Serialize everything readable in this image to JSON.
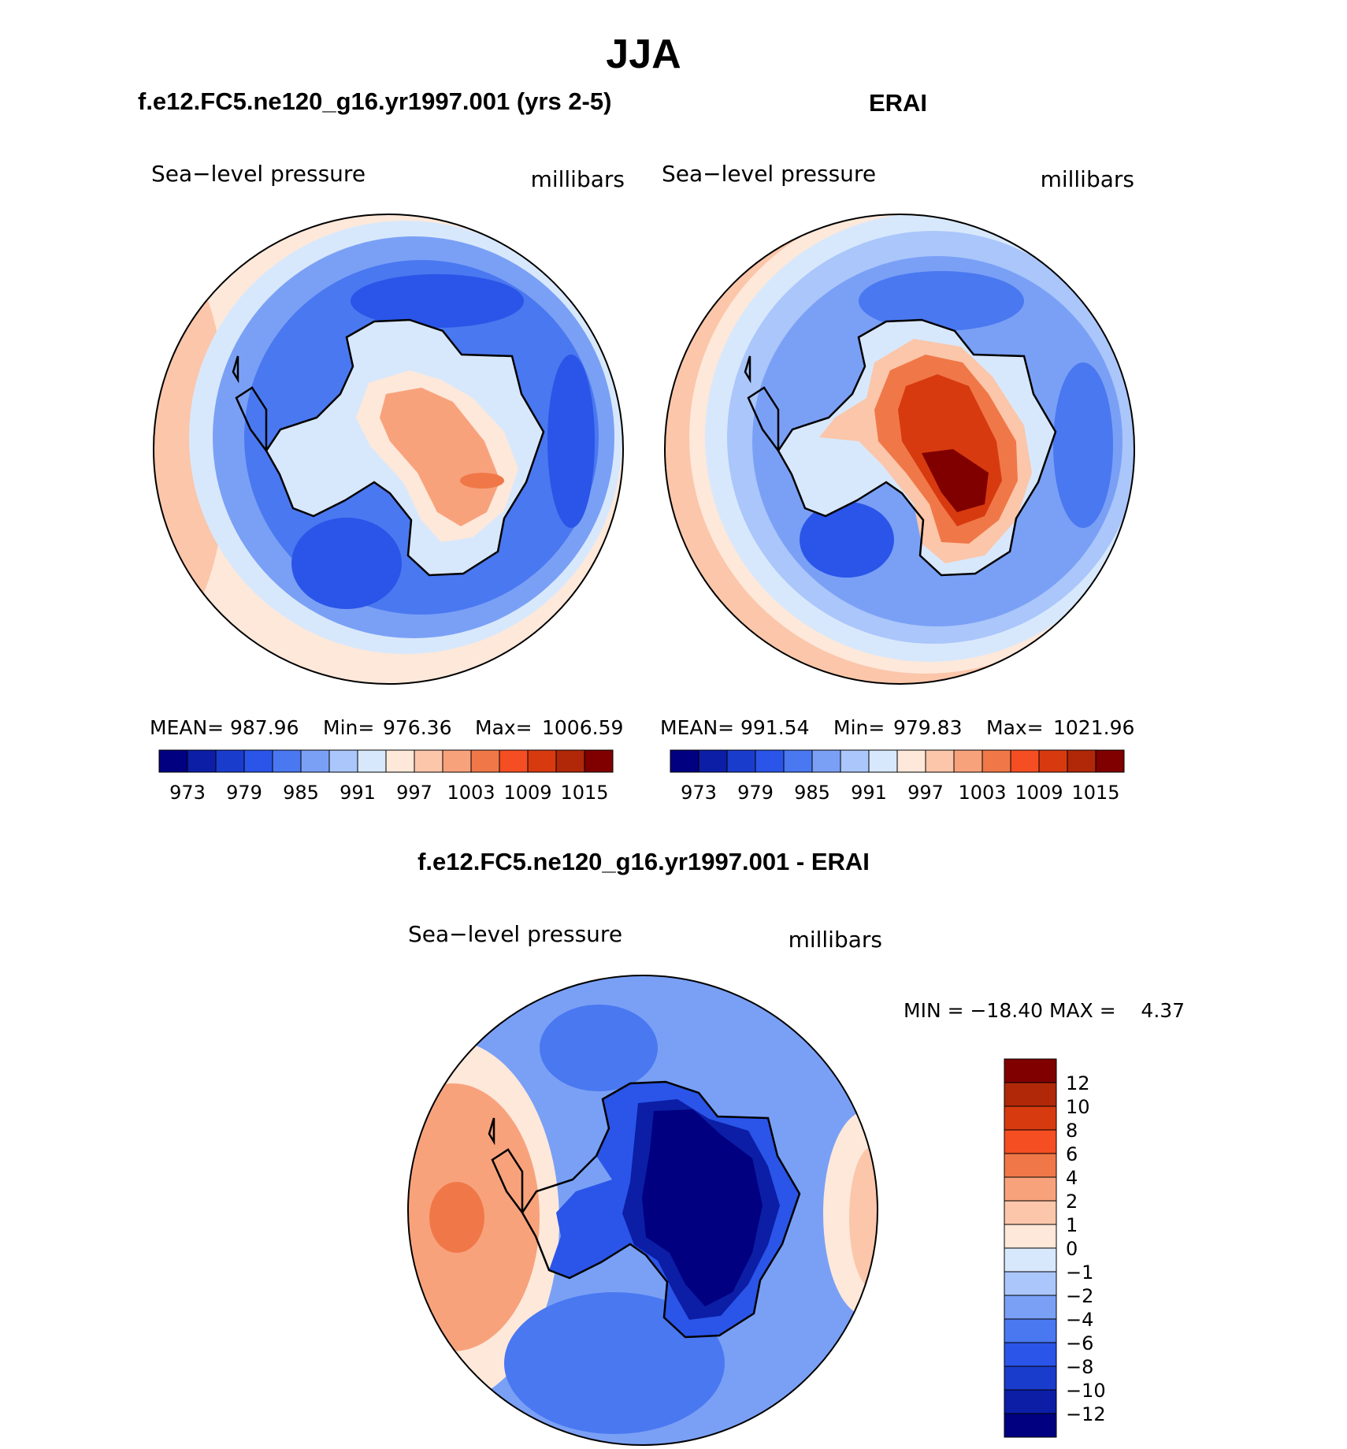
{
  "figure_title": "JJA",
  "colors": {
    "obs_scale": [
      "#000080",
      "#0c1ea6",
      "#1a3ccc",
      "#2a55e8",
      "#4a78f0",
      "#7aa0f6",
      "#aac6fa",
      "#d8e8fc",
      "#fde8da",
      "#fbc6aa",
      "#f8a27c",
      "#f07848",
      "#f44e22",
      "#d83a10",
      "#b02808",
      "#800000"
    ],
    "diff_scale": [
      "#000080",
      "#0c1ea6",
      "#1a3ccc",
      "#2a55e8",
      "#4a78f0",
      "#7aa0f6",
      "#aac6fa",
      "#d8e8fc",
      "#fde8da",
      "#fbc6aa",
      "#f8a27c",
      "#f07848",
      "#f44e22",
      "#d83a10",
      "#b02808",
      "#800000"
    ]
  },
  "chart_data": [
    {
      "type": "heatmap",
      "panel": "model",
      "title": "f.e12.FC5.ne120_g16.yr1997.001 (yrs 2-5)",
      "left_label": "Sea−level pressure",
      "right_label": "millibars",
      "projection": "south-polar-stereographic",
      "stats": {
        "mean_label": "MEAN=",
        "mean": "987.96",
        "min_label": "Min=",
        "min": "976.36",
        "max_label": "Max=",
        "max": "1006.59"
      },
      "colorbar": {
        "orientation": "horizontal",
        "tick_labels": [
          "973",
          "979",
          "985",
          "991",
          "997",
          "1003",
          "1009",
          "1015"
        ],
        "levels": [
          970,
          973,
          976,
          979,
          982,
          985,
          988,
          991,
          994,
          997,
          1000,
          1003,
          1006,
          1009,
          1012,
          1015
        ]
      }
    },
    {
      "type": "heatmap",
      "panel": "obs",
      "title": "ERAI",
      "left_label": "Sea−level pressure",
      "right_label": "millibars",
      "projection": "south-polar-stereographic",
      "stats": {
        "mean_label": "MEAN=",
        "mean": "991.54",
        "min_label": "Min=",
        "min": "979.83",
        "max_label": "Max=",
        "max": "1021.96"
      },
      "colorbar": {
        "orientation": "horizontal",
        "tick_labels": [
          "973",
          "979",
          "985",
          "991",
          "997",
          "1003",
          "1009",
          "1015"
        ],
        "levels": [
          970,
          973,
          976,
          979,
          982,
          985,
          988,
          991,
          994,
          997,
          1000,
          1003,
          1006,
          1009,
          1012,
          1015
        ]
      }
    },
    {
      "type": "heatmap",
      "panel": "difference",
      "title": "f.e12.FC5.ne120_g16.yr1997.001 - ERAI",
      "left_label": "Sea−level pressure",
      "right_label": "millibars",
      "projection": "south-polar-stereographic",
      "stats_text": "MIN = −18.40 MAX =    4.37",
      "colorbar": {
        "orientation": "vertical",
        "tick_labels": [
          "12",
          "10",
          "8",
          "6",
          "4",
          "2",
          "1",
          "0",
          "−1",
          "−2",
          "−4",
          "−6",
          "−8",
          "−10",
          "−12"
        ],
        "levels": [
          -12,
          -10,
          -8,
          -6,
          -4,
          -2,
          -1,
          0,
          1,
          2,
          4,
          6,
          8,
          10,
          12
        ]
      }
    }
  ]
}
